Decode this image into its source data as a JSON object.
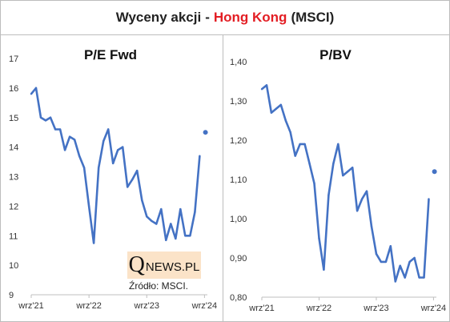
{
  "header": {
    "title_prefix": "Wyceny akcji",
    "dash": "-",
    "region": "Hong Kong",
    "title_suffix": "(MSCI)"
  },
  "branding": {
    "logo_q": "Q",
    "logo_rest": "NEWS.PL",
    "source": "Źródło: MSCI."
  },
  "colors": {
    "line": "#4472c4",
    "region": "#e31e24"
  },
  "chart_data": [
    {
      "type": "line",
      "title": "P/E Fwd",
      "xlabel": "",
      "ylabel": "",
      "ylim": [
        9,
        17
      ],
      "yticks": [
        "9",
        "10",
        "11",
        "12",
        "13",
        "14",
        "15",
        "16",
        "17"
      ],
      "xticks": [
        {
          "label": "wrz'21",
          "x": 0
        },
        {
          "label": "wrz'22",
          "x": 12
        },
        {
          "label": "wrz'23",
          "x": 24
        },
        {
          "label": "wrz'24",
          "x": 36
        }
      ],
      "x": [
        0,
        1,
        2,
        3,
        4,
        5,
        6,
        7,
        8,
        9,
        10,
        11,
        12,
        13,
        14,
        15,
        16,
        17,
        18,
        19,
        20,
        21,
        22,
        23,
        24,
        25,
        26,
        27,
        28,
        29,
        30,
        31,
        32,
        33,
        34,
        35
      ],
      "values": [
        15.8,
        16.0,
        15.0,
        14.9,
        15.0,
        14.6,
        14.6,
        13.9,
        14.35,
        14.25,
        13.7,
        13.3,
        12.0,
        10.75,
        13.3,
        14.2,
        14.6,
        13.45,
        13.9,
        14.0,
        12.65,
        12.9,
        13.2,
        12.2,
        11.65,
        11.5,
        11.4,
        11.9,
        10.85,
        11.4,
        10.9,
        11.9,
        11.0,
        11.0,
        11.8,
        13.7
      ],
      "extra_point": {
        "x": 36.2,
        "value": 14.5
      }
    },
    {
      "type": "line",
      "title": "P/BV",
      "xlabel": "",
      "ylabel": "",
      "ylim": [
        0.8,
        1.4
      ],
      "yticks": [
        "0,80",
        "0,90",
        "1,00",
        "1,10",
        "1,20",
        "1,30",
        "1,40"
      ],
      "xticks": [
        {
          "label": "wrz'21",
          "x": 0
        },
        {
          "label": "wrz'22",
          "x": 12
        },
        {
          "label": "wrz'23",
          "x": 24
        },
        {
          "label": "wrz'24",
          "x": 36
        }
      ],
      "x": [
        0,
        1,
        2,
        3,
        4,
        5,
        6,
        7,
        8,
        9,
        10,
        11,
        12,
        13,
        14,
        15,
        16,
        17,
        18,
        19,
        20,
        21,
        22,
        23,
        24,
        25,
        26,
        27,
        28,
        29,
        30,
        31,
        32,
        33,
        34,
        35
      ],
      "values": [
        1.33,
        1.34,
        1.27,
        1.28,
        1.29,
        1.25,
        1.22,
        1.16,
        1.19,
        1.19,
        1.14,
        1.09,
        0.95,
        0.87,
        1.06,
        1.14,
        1.19,
        1.11,
        1.12,
        1.13,
        1.02,
        1.05,
        1.07,
        0.98,
        0.91,
        0.89,
        0.89,
        0.93,
        0.84,
        0.88,
        0.85,
        0.89,
        0.9,
        0.85,
        0.85,
        1.05
      ],
      "extra_point": {
        "x": 36.2,
        "value": 1.12
      }
    }
  ]
}
